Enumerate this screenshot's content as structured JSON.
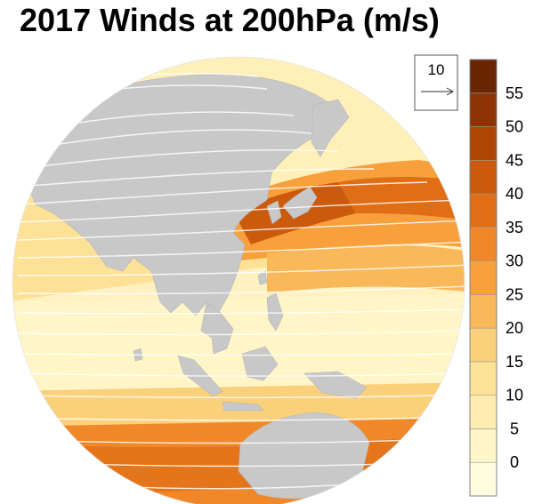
{
  "title": "2017 Winds at 200hPa (m/s)",
  "reference_vector": {
    "label": "10",
    "value": 10
  },
  "colorbar": {
    "tick_labels": [
      "0",
      "5",
      "10",
      "15",
      "20",
      "25",
      "30",
      "35",
      "40",
      "45",
      "50",
      "55"
    ],
    "levels": [
      0,
      5,
      10,
      15,
      20,
      25,
      30,
      35,
      40,
      45,
      50,
      55
    ],
    "colors": [
      "#fffce0",
      "#fff5c6",
      "#ffecb0",
      "#fde196",
      "#fbd07a",
      "#f9b85a",
      "#f7a03c",
      "#f0882a",
      "#e06e16",
      "#cc5a0c",
      "#b04606",
      "#8e3404",
      "#6a2602"
    ]
  },
  "map": {
    "projection": "orthographic",
    "land_color": "#c8c8c8",
    "vector_color": "#ffffff"
  }
}
